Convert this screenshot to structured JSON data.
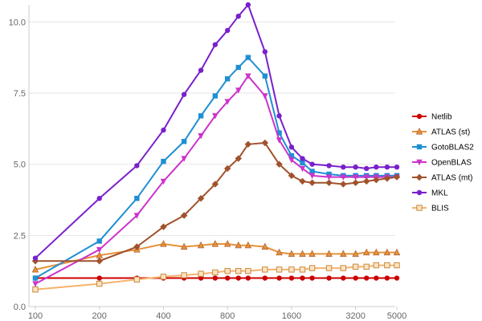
{
  "chart_data": {
    "type": "line",
    "x_scale": "log",
    "x_ticks": [
      100,
      200,
      400,
      800,
      1600,
      3200,
      5000
    ],
    "x_tick_labels": [
      "100",
      "200",
      "400",
      "800",
      "1600",
      "3200",
      "5000"
    ],
    "y_ticks": [
      0,
      2.5,
      5,
      7.5,
      10
    ],
    "y_tick_labels": [
      "0.0",
      "2.5",
      "5.0",
      "7.5",
      "10.0"
    ],
    "ylim": [
      0,
      10.6
    ],
    "grid": {
      "horizontal": true,
      "vertical": false
    },
    "legend_position": "right",
    "x": [
      100,
      200,
      300,
      400,
      480,
      560,
      640,
      720,
      800,
      880,
      960,
      1120,
      1280,
      1440,
      1600,
      1920,
      2240,
      2560,
      2880,
      3200,
      3520,
      3840,
      4160,
      4480,
      4800
    ],
    "series": [
      {
        "name": "Netlib",
        "color": "#cc0000",
        "marker": "circle",
        "x": [
          100,
          200,
          300,
          400,
          500,
          600,
          700,
          800,
          900,
          1000,
          1200,
          1400,
          1600,
          1800,
          2000,
          2400,
          2800,
          3200,
          3600,
          4000,
          4500,
          5000
        ],
        "values": [
          1.0,
          1.0,
          1.0,
          1.0,
          1.0,
          1.0,
          1.0,
          1.0,
          1.0,
          1.0,
          1.0,
          1.0,
          1.0,
          1.0,
          1.0,
          1.0,
          1.0,
          1.0,
          1.0,
          1.0,
          1.0,
          1.0
        ]
      },
      {
        "name": "ATLAS (st)",
        "color": "#e69138",
        "marker": "triangle-up",
        "x": [
          100,
          200,
          300,
          400,
          500,
          600,
          700,
          800,
          900,
          1000,
          1200,
          1400,
          1600,
          1800,
          2000,
          2400,
          2800,
          3200,
          3600,
          4000,
          4500,
          5000
        ],
        "values": [
          1.3,
          1.8,
          2.0,
          2.2,
          2.1,
          2.15,
          2.2,
          2.2,
          2.15,
          2.15,
          2.1,
          1.9,
          1.85,
          1.85,
          1.85,
          1.85,
          1.85,
          1.85,
          1.9,
          1.9,
          1.9,
          1.9
        ]
      },
      {
        "name": "GotoBLAS2",
        "color": "#1f8fd4",
        "marker": "square",
        "x": [
          100,
          200,
          300,
          400,
          500,
          600,
          700,
          800,
          900,
          1000,
          1200,
          1400,
          1600,
          1800,
          2000,
          2400,
          2800,
          3200,
          3600,
          4000,
          4500,
          5000
        ],
        "values": [
          1.0,
          2.3,
          3.8,
          5.1,
          5.8,
          6.7,
          7.4,
          8.0,
          8.4,
          8.75,
          8.1,
          6.1,
          5.3,
          5.05,
          4.75,
          4.65,
          4.6,
          4.6,
          4.6,
          4.6,
          4.6,
          4.6
        ]
      },
      {
        "name": "OpenBLAS",
        "color": "#cc33cc",
        "marker": "triangle-down",
        "x": [
          100,
          200,
          300,
          400,
          500,
          600,
          700,
          800,
          900,
          1000,
          1200,
          1400,
          1600,
          1800,
          2000,
          2400,
          2800,
          3200,
          3600,
          4000,
          4500,
          5000
        ],
        "values": [
          0.8,
          2.0,
          3.2,
          4.4,
          5.2,
          6.0,
          6.7,
          7.2,
          7.6,
          8.1,
          7.4,
          5.85,
          5.15,
          4.85,
          4.6,
          4.55,
          4.55,
          4.55,
          4.55,
          4.55,
          4.55,
          4.55
        ]
      },
      {
        "name": "ATLAS (mt)",
        "color": "#a0522d",
        "marker": "diamond",
        "x": [
          100,
          200,
          300,
          400,
          500,
          600,
          700,
          800,
          900,
          1000,
          1200,
          1400,
          1600,
          1800,
          2000,
          2400,
          2800,
          3200,
          3600,
          4000,
          4500,
          5000
        ],
        "values": [
          1.6,
          1.6,
          2.1,
          2.8,
          3.2,
          3.8,
          4.3,
          4.85,
          5.2,
          5.7,
          5.75,
          5.0,
          4.6,
          4.4,
          4.35,
          4.35,
          4.3,
          4.35,
          4.4,
          4.45,
          4.5,
          4.55
        ]
      },
      {
        "name": "MKL",
        "color": "#7a1fcc",
        "marker": "circle",
        "x": [
          100,
          200,
          300,
          400,
          500,
          600,
          700,
          800,
          900,
          1000,
          1200,
          1400,
          1600,
          1800,
          2000,
          2400,
          2800,
          3200,
          3600,
          4000,
          4500,
          5000
        ],
        "values": [
          1.7,
          3.8,
          4.95,
          6.2,
          7.45,
          8.3,
          9.2,
          9.7,
          10.2,
          10.6,
          8.95,
          6.7,
          5.6,
          5.2,
          5.0,
          4.95,
          4.9,
          4.9,
          4.85,
          4.9,
          4.9,
          4.9
        ]
      },
      {
        "name": "BLIS",
        "color": "#f6b26b",
        "marker": "square-open",
        "x": [
          100,
          200,
          300,
          400,
          500,
          600,
          700,
          800,
          900,
          1000,
          1200,
          1400,
          1600,
          1800,
          2000,
          2400,
          2800,
          3200,
          3600,
          4000,
          4500,
          5000
        ],
        "values": [
          0.6,
          0.8,
          0.95,
          1.05,
          1.1,
          1.15,
          1.2,
          1.25,
          1.25,
          1.25,
          1.3,
          1.3,
          1.3,
          1.3,
          1.35,
          1.35,
          1.35,
          1.4,
          1.4,
          1.45,
          1.45,
          1.45
        ]
      }
    ]
  }
}
